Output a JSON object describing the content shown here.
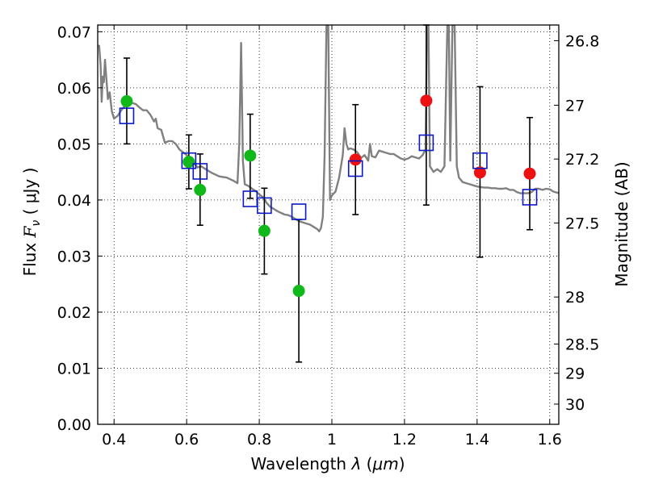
{
  "chart_data": {
    "type": "scatter",
    "xlabel_prefix": "Wavelength  ",
    "xlabel_symbol": "λ",
    "xlabel_unit_open": " (",
    "xlabel_unit": "μm",
    "xlabel_unit_close": ")",
    "ylabel_prefix": "Flux  ",
    "ylabel_symbol": "F",
    "ylabel_sub": "ν",
    "ylabel_unit": "  ( μJy )",
    "y2label": "Magnitude (AB)",
    "xlim": [
      0.355,
      1.625
    ],
    "ylim": [
      0.0,
      0.0712
    ],
    "grid": true,
    "xticks": [
      {
        "value": 0.4,
        "label": "0.4"
      },
      {
        "value": 0.6,
        "label": "0.6"
      },
      {
        "value": 0.8,
        "label": "0.8"
      },
      {
        "value": 1.0,
        "label": "1"
      },
      {
        "value": 1.2,
        "label": "1.2"
      },
      {
        "value": 1.4,
        "label": "1.4"
      },
      {
        "value": 1.6,
        "label": "1.6"
      }
    ],
    "yticks": [
      {
        "value": 0.0,
        "label": "0.00"
      },
      {
        "value": 0.01,
        "label": "0.01"
      },
      {
        "value": 0.02,
        "label": "0.02"
      },
      {
        "value": 0.03,
        "label": "0.03"
      },
      {
        "value": 0.04,
        "label": "0.04"
      },
      {
        "value": 0.05,
        "label": "0.05"
      },
      {
        "value": 0.06,
        "label": "0.06"
      },
      {
        "value": 0.07,
        "label": "0.07"
      }
    ],
    "magnitude_ticks": [
      {
        "flux": 0.0684,
        "label": "26.8"
      },
      {
        "flux": 0.0569,
        "label": "27"
      },
      {
        "flux": 0.0473,
        "label": "27.2"
      },
      {
        "flux": 0.0359,
        "label": "27.5"
      },
      {
        "flux": 0.0227,
        "label": "28"
      },
      {
        "flux": 0.0143,
        "label": "28.5"
      },
      {
        "flux": 0.0091,
        "label": "29"
      },
      {
        "flux": 0.0036,
        "label": "30"
      }
    ],
    "series": [
      {
        "kind": "errorbar",
        "color": "#000000",
        "points": [
          {
            "x": 0.435,
            "lo": 0.05,
            "hi": 0.0653
          },
          {
            "x": 0.606,
            "lo": 0.042,
            "hi": 0.0516
          },
          {
            "x": 0.637,
            "lo": 0.0355,
            "hi": 0.0482
          },
          {
            "x": 0.775,
            "lo": 0.0403,
            "hi": 0.0553
          },
          {
            "x": 0.814,
            "lo": 0.0268,
            "hi": 0.0421
          },
          {
            "x": 0.909,
            "lo": 0.0111,
            "hi": 0.0365
          },
          {
            "x": 1.065,
            "lo": 0.0374,
            "hi": 0.057
          },
          {
            "x": 1.26,
            "lo": 0.0391,
            "hi": 0.0712
          },
          {
            "x": 1.408,
            "lo": 0.0298,
            "hi": 0.0602
          },
          {
            "x": 1.545,
            "lo": 0.0347,
            "hi": 0.0547
          }
        ]
      },
      {
        "kind": "points",
        "color": "#11b81a",
        "points": [
          {
            "x": 0.435,
            "y": 0.0576
          },
          {
            "x": 0.606,
            "y": 0.0468
          },
          {
            "x": 0.637,
            "y": 0.0418
          },
          {
            "x": 0.775,
            "y": 0.0479
          },
          {
            "x": 0.814,
            "y": 0.0345
          },
          {
            "x": 0.909,
            "y": 0.0238
          }
        ]
      },
      {
        "kind": "points",
        "color": "#ee1111",
        "points": [
          {
            "x": 1.065,
            "y": 0.0472
          },
          {
            "x": 1.26,
            "y": 0.0577
          },
          {
            "x": 1.408,
            "y": 0.0449
          },
          {
            "x": 1.545,
            "y": 0.0447
          }
        ]
      },
      {
        "kind": "squares",
        "color": "#0a18c8",
        "points": [
          {
            "x": 0.435,
            "y": 0.055
          },
          {
            "x": 0.606,
            "y": 0.047
          },
          {
            "x": 0.637,
            "y": 0.0451
          },
          {
            "x": 0.775,
            "y": 0.0402
          },
          {
            "x": 0.814,
            "y": 0.039
          },
          {
            "x": 0.909,
            "y": 0.0379
          },
          {
            "x": 1.065,
            "y": 0.0456
          },
          {
            "x": 1.26,
            "y": 0.0502
          },
          {
            "x": 1.408,
            "y": 0.047
          },
          {
            "x": 1.545,
            "y": 0.0405
          }
        ]
      },
      {
        "kind": "spectrum",
        "color": "#808080",
        "points": [
          [
            0.355,
            0.0675
          ],
          [
            0.359,
            0.0675
          ],
          [
            0.363,
            0.064
          ],
          [
            0.366,
            0.0575
          ],
          [
            0.369,
            0.062
          ],
          [
            0.372,
            0.061
          ],
          [
            0.375,
            0.065
          ],
          [
            0.379,
            0.0615
          ],
          [
            0.383,
            0.058
          ],
          [
            0.388,
            0.0592
          ],
          [
            0.394,
            0.0558
          ],
          [
            0.4,
            0.0545
          ],
          [
            0.41,
            0.055
          ],
          [
            0.42,
            0.056
          ],
          [
            0.43,
            0.0568
          ],
          [
            0.44,
            0.0572
          ],
          [
            0.45,
            0.0573
          ],
          [
            0.46,
            0.0571
          ],
          [
            0.47,
            0.0565
          ],
          [
            0.48,
            0.056
          ],
          [
            0.49,
            0.056
          ],
          [
            0.5,
            0.0552
          ],
          [
            0.51,
            0.054
          ],
          [
            0.515,
            0.0545
          ],
          [
            0.52,
            0.0528
          ],
          [
            0.53,
            0.0525
          ],
          [
            0.54,
            0.0502
          ],
          [
            0.55,
            0.0505
          ],
          [
            0.56,
            0.0505
          ],
          [
            0.57,
            0.05
          ],
          [
            0.58,
            0.049
          ],
          [
            0.59,
            0.0485
          ],
          [
            0.6,
            0.048
          ],
          [
            0.61,
            0.0472
          ],
          [
            0.62,
            0.0466
          ],
          [
            0.63,
            0.0458
          ],
          [
            0.64,
            0.046
          ],
          [
            0.65,
            0.0456
          ],
          [
            0.66,
            0.0452
          ],
          [
            0.67,
            0.0448
          ],
          [
            0.68,
            0.0445
          ],
          [
            0.69,
            0.0442
          ],
          [
            0.7,
            0.0441
          ],
          [
            0.71,
            0.044
          ],
          [
            0.72,
            0.0437
          ],
          [
            0.73,
            0.0434
          ],
          [
            0.74,
            0.043
          ],
          [
            0.745,
            0.05
          ],
          [
            0.75,
            0.068
          ],
          [
            0.755,
            0.047
          ],
          [
            0.76,
            0.0428
          ],
          [
            0.77,
            0.0425
          ],
          [
            0.78,
            0.042
          ],
          [
            0.79,
            0.0416
          ],
          [
            0.8,
            0.041
          ],
          [
            0.81,
            0.0405
          ],
          [
            0.82,
            0.0395
          ],
          [
            0.83,
            0.0388
          ],
          [
            0.84,
            0.0384
          ],
          [
            0.85,
            0.038
          ],
          [
            0.86,
            0.0377
          ],
          [
            0.87,
            0.0374
          ],
          [
            0.88,
            0.0373
          ],
          [
            0.89,
            0.037
          ],
          [
            0.9,
            0.0366
          ],
          [
            0.91,
            0.0362
          ],
          [
            0.92,
            0.036
          ],
          [
            0.93,
            0.0358
          ],
          [
            0.94,
            0.0356
          ],
          [
            0.95,
            0.0352
          ],
          [
            0.96,
            0.0348
          ],
          [
            0.965,
            0.0344
          ],
          [
            0.97,
            0.035
          ],
          [
            0.975,
            0.037
          ],
          [
            0.98,
            0.048
          ],
          [
            0.985,
            0.0712
          ],
          [
            0.99,
            0.0712
          ],
          [
            0.995,
            0.04
          ],
          [
            1.0,
            0.0408
          ],
          [
            1.01,
            0.0415
          ],
          [
            1.02,
            0.044
          ],
          [
            1.03,
            0.048
          ],
          [
            1.035,
            0.0528
          ],
          [
            1.04,
            0.05
          ],
          [
            1.045,
            0.049
          ],
          [
            1.05,
            0.0492
          ],
          [
            1.06,
            0.049
          ],
          [
            1.07,
            0.0485
          ],
          [
            1.08,
            0.0475
          ],
          [
            1.09,
            0.048
          ],
          [
            1.1,
            0.047
          ],
          [
            1.105,
            0.05
          ],
          [
            1.11,
            0.0478
          ],
          [
            1.12,
            0.0476
          ],
          [
            1.13,
            0.0488
          ],
          [
            1.14,
            0.0486
          ],
          [
            1.15,
            0.0484
          ],
          [
            1.16,
            0.0482
          ],
          [
            1.17,
            0.0482
          ],
          [
            1.18,
            0.0478
          ],
          [
            1.19,
            0.0474
          ],
          [
            1.2,
            0.0472
          ],
          [
            1.21,
            0.0474
          ],
          [
            1.22,
            0.0478
          ],
          [
            1.23,
            0.0476
          ],
          [
            1.24,
            0.0474
          ],
          [
            1.25,
            0.048
          ],
          [
            1.258,
            0.049
          ],
          [
            1.262,
            0.0712
          ],
          [
            1.266,
            0.0712
          ],
          [
            1.27,
            0.046
          ],
          [
            1.28,
            0.045
          ],
          [
            1.29,
            0.0455
          ],
          [
            1.3,
            0.045
          ],
          [
            1.31,
            0.046
          ],
          [
            1.318,
            0.0712
          ],
          [
            1.322,
            0.0712
          ],
          [
            1.326,
            0.047
          ],
          [
            1.332,
            0.0712
          ],
          [
            1.338,
            0.0712
          ],
          [
            1.344,
            0.046
          ],
          [
            1.35,
            0.044
          ],
          [
            1.36,
            0.0432
          ],
          [
            1.37,
            0.043
          ],
          [
            1.38,
            0.0428
          ],
          [
            1.39,
            0.0426
          ],
          [
            1.4,
            0.0424
          ],
          [
            1.41,
            0.0423
          ],
          [
            1.42,
            0.0422
          ],
          [
            1.43,
            0.0422
          ],
          [
            1.44,
            0.0421
          ],
          [
            1.45,
            0.0421
          ],
          [
            1.46,
            0.042
          ],
          [
            1.47,
            0.042
          ],
          [
            1.48,
            0.0421
          ],
          [
            1.49,
            0.0418
          ],
          [
            1.5,
            0.0418
          ],
          [
            1.51,
            0.0414
          ],
          [
            1.52,
            0.0412
          ],
          [
            1.53,
            0.0412
          ],
          [
            1.54,
            0.0412
          ],
          [
            1.55,
            0.0414
          ],
          [
            1.56,
            0.042
          ],
          [
            1.57,
            0.042
          ],
          [
            1.58,
            0.0418
          ],
          [
            1.59,
            0.042
          ],
          [
            1.6,
            0.0419
          ],
          [
            1.61,
            0.0415
          ],
          [
            1.62,
            0.0413
          ],
          [
            1.625,
            0.0413
          ]
        ]
      }
    ]
  }
}
